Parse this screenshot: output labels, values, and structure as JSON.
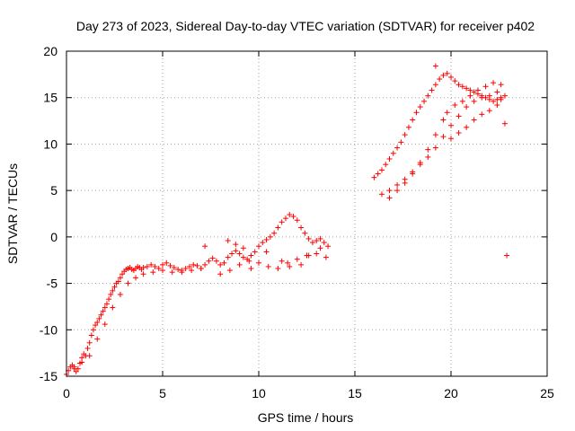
{
  "chart_data": {
    "type": "scatter",
    "title": "Day 273 of 2023, Sidereal Day-to-day VTEC variation (SDTVAR) for receiver p402",
    "xlabel": "GPS time / hours",
    "ylabel": "SDTVAR / TECUs",
    "xlim": [
      0,
      25
    ],
    "ylim": [
      -15,
      20
    ],
    "xticks": [
      0,
      5,
      10,
      15,
      20,
      25
    ],
    "yticks": [
      -15,
      -10,
      -5,
      0,
      5,
      10,
      15,
      20
    ],
    "grid": true,
    "marker": "+",
    "series": [
      {
        "name": "SDTVAR",
        "color": "#ff0000",
        "x": [
          0.0,
          0.1,
          0.2,
          0.3,
          0.4,
          0.5,
          0.6,
          0.7,
          0.8,
          0.9,
          1.0,
          1.1,
          1.2,
          1.3,
          1.4,
          1.5,
          1.6,
          1.7,
          1.8,
          1.9,
          2.0,
          2.1,
          2.2,
          2.3,
          2.4,
          2.5,
          2.6,
          2.7,
          2.8,
          2.9,
          3.0,
          3.1,
          3.2,
          3.3,
          3.4,
          3.5,
          3.6,
          3.7,
          3.8,
          3.9,
          4.0,
          4.2,
          4.4,
          4.6,
          4.8,
          5.0,
          5.2,
          5.4,
          5.6,
          5.8,
          6.0,
          6.2,
          6.4,
          6.6,
          6.8,
          7.0,
          7.2,
          7.4,
          7.6,
          7.8,
          8.0,
          8.2,
          8.4,
          8.6,
          8.8,
          9.0,
          9.2,
          9.4,
          9.6,
          9.8,
          10.0,
          10.2,
          10.4,
          10.6,
          10.8,
          11.0,
          11.2,
          11.4,
          11.6,
          11.8,
          12.0,
          12.2,
          12.4,
          12.6,
          12.8,
          13.0,
          13.2,
          13.4,
          13.6,
          0.4,
          0.8,
          1.2,
          1.6,
          2.0,
          2.4,
          2.8,
          3.2,
          3.6,
          4.0,
          4.5,
          5.0,
          5.5,
          6.0,
          6.5,
          7.0,
          7.2,
          8.0,
          8.5,
          9.0,
          9.5,
          10.0,
          10.5,
          11.0,
          11.5,
          12.0,
          12.5,
          13.0,
          13.5,
          8.4,
          8.8,
          9.2,
          9.6,
          10.4,
          11.2,
          11.6,
          12.2,
          12.6,
          13.2,
          16.0,
          16.2,
          16.4,
          16.6,
          16.8,
          17.0,
          17.2,
          17.4,
          17.6,
          17.8,
          18.0,
          18.2,
          18.4,
          18.6,
          18.8,
          19.0,
          19.2,
          19.4,
          19.6,
          19.8,
          20.0,
          20.2,
          20.4,
          20.6,
          20.8,
          21.0,
          21.2,
          21.4,
          21.6,
          21.8,
          22.0,
          22.2,
          22.4,
          22.6,
          22.8,
          16.4,
          16.8,
          17.2,
          17.6,
          18.0,
          18.4,
          18.8,
          19.2,
          19.6,
          20.0,
          20.4,
          20.8,
          21.2,
          21.6,
          22.0,
          22.4,
          16.8,
          17.2,
          17.6,
          18.0,
          18.4,
          18.8,
          19.2,
          19.6,
          19.8,
          20.2,
          20.6,
          21.0,
          21.4,
          21.8,
          22.2,
          22.6,
          20.0,
          20.4,
          20.8,
          21.2,
          21.6,
          22.0,
          22.4,
          22.6,
          22.8,
          22.9,
          19.2
        ],
        "y": [
          -14.8,
          -14.4,
          -14.0,
          -13.8,
          -14.2,
          -14.5,
          -14.2,
          -13.6,
          -13.0,
          -12.6,
          -12.8,
          -12.0,
          -11.4,
          -10.6,
          -10.0,
          -9.5,
          -9.2,
          -8.8,
          -8.4,
          -8.0,
          -7.6,
          -7.2,
          -6.7,
          -6.2,
          -5.8,
          -5.4,
          -5.0,
          -4.8,
          -4.4,
          -4.0,
          -3.7,
          -3.5,
          -3.4,
          -3.3,
          -3.5,
          -3.6,
          -3.4,
          -3.2,
          -3.3,
          -3.5,
          -3.3,
          -3.2,
          -3.0,
          -3.2,
          -3.4,
          -3.0,
          -2.8,
          -3.1,
          -3.3,
          -3.5,
          -3.6,
          -3.4,
          -3.2,
          -3.0,
          -3.1,
          -3.4,
          -3.0,
          -2.6,
          -2.3,
          -2.6,
          -3.0,
          -2.8,
          -2.2,
          -1.8,
          -1.5,
          -1.8,
          -2.2,
          -2.4,
          -2.0,
          -1.6,
          -1.0,
          -0.6,
          -0.3,
          0.0,
          0.4,
          1.0,
          1.6,
          2.0,
          2.4,
          2.2,
          1.8,
          1.0,
          0.4,
          -0.2,
          -0.6,
          -0.4,
          -0.2,
          -0.6,
          -1.0,
          -14.0,
          -13.5,
          -12.8,
          -11.0,
          -9.4,
          -7.6,
          -6.2,
          -5.0,
          -4.4,
          -4.0,
          -3.8,
          -3.6,
          -3.8,
          -3.8,
          -3.6,
          -3.4,
          -1.0,
          -4.0,
          -3.6,
          -3.0,
          -2.6,
          -2.8,
          -3.2,
          -3.4,
          -2.8,
          -2.4,
          -2.0,
          -1.8,
          -2.2,
          -0.4,
          -0.8,
          -1.2,
          -3.4,
          -1.6,
          -2.6,
          -3.2,
          -3.0,
          -2.0,
          -1.2,
          6.4,
          6.8,
          7.2,
          7.8,
          8.4,
          9.0,
          9.6,
          10.2,
          11.0,
          11.8,
          12.6,
          13.4,
          14.0,
          14.6,
          15.2,
          15.8,
          16.4,
          17.0,
          17.4,
          17.6,
          17.2,
          16.8,
          16.4,
          16.2,
          16.0,
          15.8,
          15.6,
          15.4,
          15.2,
          15.0,
          14.8,
          14.6,
          14.8,
          15.0,
          15.2,
          4.6,
          5.0,
          5.6,
          6.2,
          7.0,
          7.8,
          8.6,
          9.6,
          10.8,
          12.0,
          13.0,
          14.0,
          14.6,
          15.0,
          15.2,
          15.6,
          4.2,
          5.0,
          5.8,
          6.8,
          8.0,
          9.4,
          11.0,
          12.6,
          13.4,
          14.2,
          14.6,
          15.2,
          15.8,
          16.2,
          16.6,
          16.4,
          10.6,
          11.2,
          11.8,
          12.6,
          13.2,
          13.6,
          14.2,
          14.8,
          12.2,
          -2.0,
          18.4
        ]
      }
    ]
  }
}
